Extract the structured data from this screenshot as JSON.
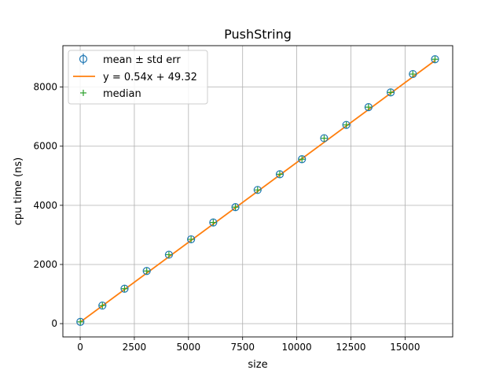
{
  "chart_data": {
    "type": "scatter",
    "title": "PushString",
    "xlabel": "size",
    "ylabel": "cpu time (ns)",
    "xlim": [
      -800,
      17200
    ],
    "ylim": [
      -450,
      9400
    ],
    "xticks": [
      0,
      2500,
      5000,
      7500,
      10000,
      12500,
      15000
    ],
    "yticks": [
      0,
      2000,
      4000,
      6000,
      8000
    ],
    "grid": true,
    "legend_position": "top-left",
    "legend": [
      {
        "label": "mean ± std err",
        "marker": "errorbar-circle",
        "color": "#1f77b4"
      },
      {
        "label": "y = 0.54x + 49.32",
        "marker": "line",
        "color": "#ff7f0e"
      },
      {
        "label": "median",
        "marker": "plus",
        "color": "#2ca02c"
      }
    ],
    "fit": {
      "slope": 0.54,
      "intercept": 49.32,
      "color": "#ff7f0e"
    },
    "series": [
      {
        "name": "mean ± std err",
        "color": "#1f77b4",
        "x": [
          8,
          1024,
          2048,
          3072,
          4096,
          5120,
          6144,
          7168,
          8192,
          9216,
          10240,
          11264,
          12288,
          13312,
          14336,
          15360,
          16384
        ],
        "y": [
          60,
          610,
          1180,
          1780,
          2330,
          2850,
          3420,
          3940,
          4520,
          5050,
          5560,
          6270,
          6720,
          7320,
          7820,
          8440,
          8940
        ]
      },
      {
        "name": "median",
        "color": "#2ca02c",
        "x": [
          8,
          1024,
          2048,
          3072,
          4096,
          5120,
          6144,
          7168,
          8192,
          9216,
          10240,
          11264,
          12288,
          13312,
          14336,
          15360,
          16384
        ],
        "y": [
          60,
          610,
          1180,
          1780,
          2330,
          2850,
          3420,
          3940,
          4520,
          5050,
          5560,
          6270,
          6720,
          7320,
          7820,
          8440,
          8940
        ]
      }
    ]
  }
}
